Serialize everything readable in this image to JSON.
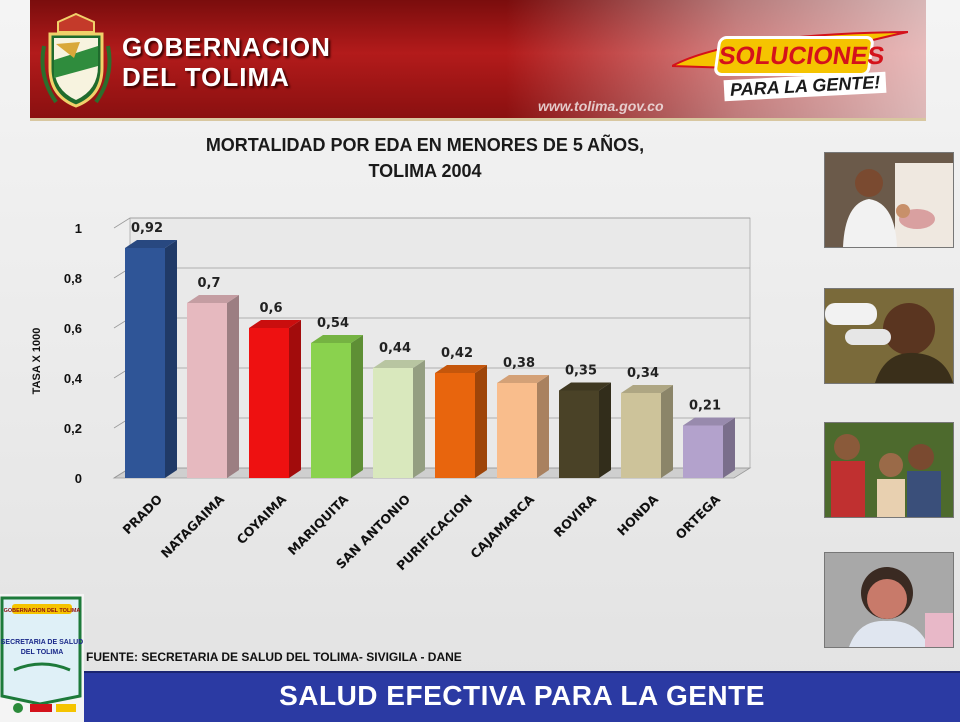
{
  "header": {
    "title_line1": "GOBERNACION",
    "title_line2": "DEL TOLIMA",
    "website": "www.tolima.gov.co",
    "slogan_main": "SOLUCIONES",
    "slogan_sub": "PARA LA GENTE!",
    "colors": {
      "banner": "#b31b1b",
      "slogan_bg": "#f5c400",
      "slogan_text": "#d4121b"
    }
  },
  "chart_data": {
    "type": "bar",
    "title_line1": "MORTALIDAD POR EDA EN MENORES DE 5 AÑOS,",
    "title_line2": "TOLIMA 2004",
    "ylabel": "TASA X 1000",
    "ylim": [
      0,
      1
    ],
    "yticks": [
      "0",
      "0,2",
      "0,4",
      "0,6",
      "0,8",
      "1"
    ],
    "grid": true,
    "categories": [
      "PRADO",
      "NATAGAIMA",
      "COYAIMA",
      "MARIQUITA",
      "SAN ANTONIO",
      "PURIFICACION",
      "CAJAMARCA",
      "ROVIRA",
      "HONDA",
      "ORTEGA"
    ],
    "values": [
      0.92,
      0.7,
      0.6,
      0.54,
      0.44,
      0.42,
      0.38,
      0.35,
      0.34,
      0.21
    ],
    "data_labels": [
      "0,92",
      "0,7",
      "0,6",
      "0,54",
      "0,44",
      "0,42",
      "0,38",
      "0,35",
      "0,34",
      "0,21"
    ],
    "colors": [
      "#2f5597",
      "#e6b9bf",
      "#ee1111",
      "#8ad24e",
      "#d9e8bd",
      "#e8650d",
      "#f9bd8c",
      "#4a4227",
      "#cdc39a",
      "#b3a2cc"
    ]
  },
  "photos": [
    {
      "name": "photo-mother-baby",
      "colors": [
        "#6b5a4a",
        "#efe8e0",
        "#3b2a20",
        "#d9a0a0"
      ]
    },
    {
      "name": "photo-child-vaccine",
      "colors": [
        "#7a6a3a",
        "#f2f2f2",
        "#5a3520",
        "#3a2f1a"
      ]
    },
    {
      "name": "photo-children-group",
      "colors": [
        "#4d6a2d",
        "#c03030",
        "#8a5a3a",
        "#3a4f7a"
      ]
    },
    {
      "name": "photo-toddler",
      "colors": [
        "#a8a8a8",
        "#c87a6a",
        "#3a2a22",
        "#e0e6f0"
      ]
    }
  ],
  "source_text": "FUENTE: SECRETARIA DE SALUD DEL TOLIMA- SIVIGILA - DANE",
  "footer_text": "SALUD EFECTIVA PARA LA GENTE",
  "logo": {
    "badge": "GOBERNACION DEL TOLIMA",
    "title_line1": "SECRETARIA DE SALUD",
    "title_line2": "DEL TOLIMA",
    "colors": {
      "frame": "#1d7a3a",
      "text": "#1b2a8a",
      "badge": "#f5c400"
    }
  }
}
